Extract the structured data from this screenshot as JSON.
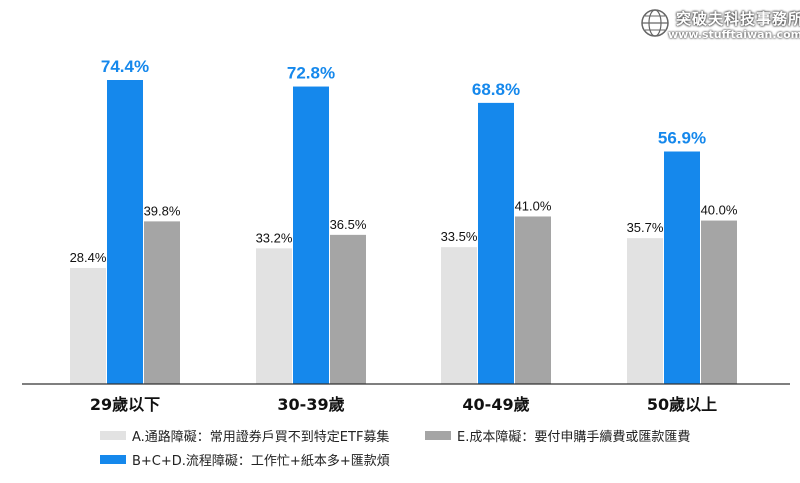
{
  "watermark": {
    "title": "突破夫科技事務所",
    "url": "www.stufftaiwan.com",
    "icon": "globe-logo-icon"
  },
  "colors": {
    "A": "#e2e2e2",
    "BCD": "#1588ec",
    "E": "#a5a5a5",
    "highlight_label": "#1588ec",
    "axis": "#333333"
  },
  "chart_data": {
    "type": "bar",
    "categories": [
      "29歲以下",
      "30-39歲",
      "40-49歲",
      "50歲以上"
    ],
    "series": [
      {
        "key": "A",
        "name": "A.通路障礙：常用證券戶買不到特定ETF募集",
        "values": [
          28.4,
          33.2,
          33.5,
          35.7
        ]
      },
      {
        "key": "BCD",
        "name": "B+C+D.流程障礙：工作忙+紙本多+匯款煩",
        "values": [
          74.4,
          72.8,
          68.8,
          56.9
        ]
      },
      {
        "key": "E",
        "name": "E.成本障礙：要付申購手續費或匯款匯費",
        "values": [
          39.8,
          36.5,
          41.0,
          40.0
        ]
      }
    ],
    "value_labels": {
      "A": [
        "28.4%",
        "33.2%",
        "33.5%",
        "35.7%"
      ],
      "BCD": [
        "74.4%",
        "72.8%",
        "68.8%",
        "56.9%"
      ],
      "E": [
        "39.8%",
        "36.5%",
        "41.0%",
        "40.0%"
      ]
    },
    "ylim": [
      0,
      80
    ],
    "grid": false,
    "legend_position": "bottom"
  }
}
